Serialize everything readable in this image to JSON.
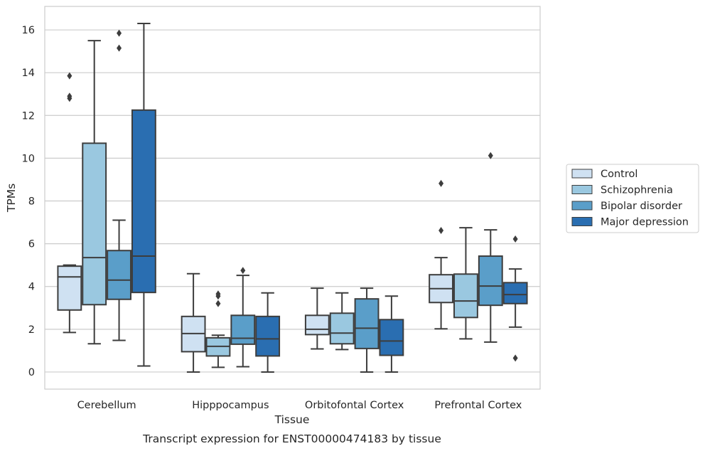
{
  "chart_data": {
    "type": "box",
    "title": "",
    "caption": "Transcript expression for ENST00000474183 by tissue",
    "xlabel": "Tissue",
    "ylabel": "TPMs",
    "ylim": [
      -0.8,
      17.1
    ],
    "yticks": [
      "0",
      "2",
      "4",
      "6",
      "8",
      "10",
      "12",
      "14",
      "16"
    ],
    "grid": "horizontal",
    "legend_position": "right",
    "categories": [
      "Cerebellum",
      "Hipppocampus",
      "Orbitofontal Cortex",
      "Prefrontal Cortex"
    ],
    "series": [
      {
        "name": "Control",
        "color": "#cfe1f2",
        "boxes": [
          {
            "whislo": 1.85,
            "q1": 2.9,
            "med": 4.45,
            "q3": 4.95,
            "whishi": 5.0,
            "fliers": [
              12.8,
              12.9,
              13.85
            ]
          },
          {
            "whislo": 0.0,
            "q1": 0.95,
            "med": 1.8,
            "q3": 2.6,
            "whishi": 4.6,
            "fliers": []
          },
          {
            "whislo": 1.08,
            "q1": 1.75,
            "med": 2.0,
            "q3": 2.65,
            "whishi": 3.92,
            "fliers": []
          },
          {
            "whislo": 2.02,
            "q1": 3.25,
            "med": 3.9,
            "q3": 4.55,
            "whishi": 5.35,
            "fliers": [
              6.62,
              8.82
            ]
          }
        ]
      },
      {
        "name": "Schizophrenia",
        "color": "#9ac8e0",
        "boxes": [
          {
            "whislo": 1.32,
            "q1": 3.15,
            "med": 5.35,
            "q3": 10.7,
            "whishi": 15.5,
            "fliers": []
          },
          {
            "whislo": 0.22,
            "q1": 0.75,
            "med": 1.2,
            "q3": 1.6,
            "whishi": 1.72,
            "fliers": [
              3.2,
              3.55,
              3.65
            ]
          },
          {
            "whislo": 1.05,
            "q1": 1.32,
            "med": 1.82,
            "q3": 2.75,
            "whishi": 3.7,
            "fliers": []
          },
          {
            "whislo": 1.55,
            "q1": 2.55,
            "med": 3.32,
            "q3": 4.58,
            "whishi": 6.75,
            "fliers": []
          }
        ]
      },
      {
        "name": "Bipolar disorder",
        "color": "#5a9ec9",
        "boxes": [
          {
            "whislo": 1.48,
            "q1": 3.4,
            "med": 4.3,
            "q3": 5.68,
            "whishi": 7.1,
            "fliers": [
              15.15,
              15.85
            ]
          },
          {
            "whislo": 0.25,
            "q1": 1.3,
            "med": 1.58,
            "q3": 2.65,
            "whishi": 4.52,
            "fliers": [
              4.75
            ]
          },
          {
            "whislo": 0.0,
            "q1": 1.1,
            "med": 2.05,
            "q3": 3.42,
            "whishi": 3.92,
            "fliers": []
          },
          {
            "whislo": 1.4,
            "q1": 3.12,
            "med": 4.02,
            "q3": 5.42,
            "whishi": 6.65,
            "fliers": [
              10.12
            ]
          }
        ]
      },
      {
        "name": "Major depression",
        "color": "#2a6eb1",
        "boxes": [
          {
            "whislo": 0.28,
            "q1": 3.72,
            "med": 5.42,
            "q3": 12.25,
            "whishi": 16.3,
            "fliers": []
          },
          {
            "whislo": 0.0,
            "q1": 0.75,
            "med": 1.55,
            "q3": 2.6,
            "whishi": 3.7,
            "fliers": []
          },
          {
            "whislo": 0.0,
            "q1": 0.78,
            "med": 1.45,
            "q3": 2.45,
            "whishi": 3.55,
            "fliers": []
          },
          {
            "whislo": 2.1,
            "q1": 3.2,
            "med": 3.62,
            "q3": 4.18,
            "whishi": 4.82,
            "fliers": [
              0.65,
              6.22
            ]
          }
        ]
      }
    ]
  }
}
